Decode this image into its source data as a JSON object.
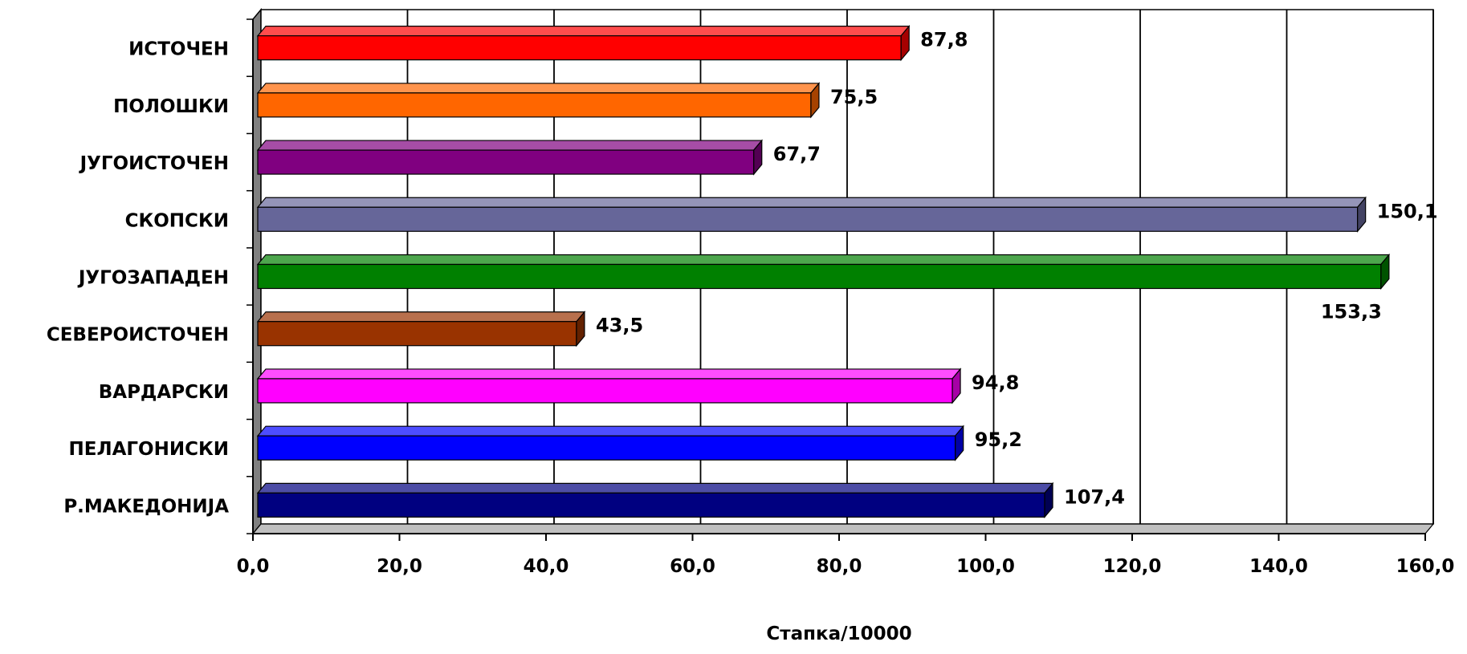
{
  "chart_data": {
    "type": "bar",
    "orientation": "horizontal",
    "categories": [
      "ИСТОЧЕН",
      "ПОЛОШКИ",
      "ЈУГОИСТОЧЕН",
      "СКОПСКИ",
      "ЈУГОЗАПАДЕН",
      "СЕВЕРОИСТОЧЕН",
      "ВАРДАРСКИ",
      "ПЕЛАГОНИСКИ",
      "Р.МАКЕДОНИЈА"
    ],
    "values": [
      87.8,
      75.5,
      67.7,
      150.1,
      153.3,
      43.5,
      94.8,
      95.2,
      107.4
    ],
    "data_labels": [
      "87,8",
      "75,5",
      "67,7",
      "150,1",
      "153,3",
      "43,5",
      "94,8",
      "95,2",
      "107,4"
    ],
    "colors": [
      "#ff0000",
      "#ff6600",
      "#800080",
      "#666699",
      "#008000",
      "#993300",
      "#ff00ff",
      "#0000ff",
      "#000080"
    ],
    "xlim": [
      0,
      160
    ],
    "x_ticks": [
      0,
      20,
      40,
      60,
      80,
      100,
      120,
      140,
      160
    ],
    "x_tick_labels": [
      "0,0",
      "20,0",
      "40,0",
      "60,0",
      "80,0",
      "100,0",
      "120,0",
      "140,0",
      "160,0"
    ],
    "xlabel": "Стапка/10000",
    "ylabel": "",
    "title": "",
    "grid": "vertical",
    "legend": "none",
    "style": "3d"
  }
}
